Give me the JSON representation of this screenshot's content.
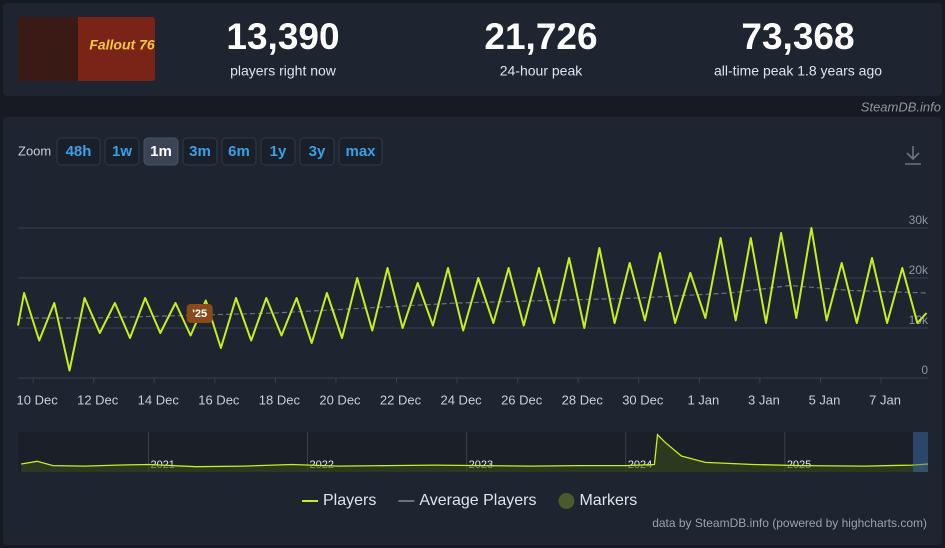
{
  "header": {
    "game_logo": "Fallout 76",
    "stats": [
      {
        "value": "13,390",
        "label": "players right now"
      },
      {
        "value": "21,726",
        "label": "24-hour peak"
      },
      {
        "value": "73,368",
        "label": "all-time peak 1.8 years ago"
      }
    ],
    "brand": "SteamDB.info"
  },
  "zoom": {
    "label": "Zoom",
    "buttons": [
      "48h",
      "1w",
      "1m",
      "3m",
      "6m",
      "1y",
      "3y",
      "max"
    ],
    "active": "1m"
  },
  "chart_data": {
    "type": "line",
    "legend": "bottom",
    "grid": true,
    "x": [
      -0.5,
      -0.3,
      0.2,
      0.7,
      1.2,
      1.7,
      2.2,
      2.7,
      3.2,
      3.7,
      4.2,
      4.7,
      5.2,
      5.7,
      6.2,
      6.7,
      7.2,
      7.7,
      8.2,
      8.7,
      9.2,
      9.7,
      10.2,
      10.7,
      11.2,
      11.7,
      12.2,
      12.7,
      13.2,
      13.7,
      14.2,
      14.7,
      15.2,
      15.7,
      16.2,
      16.7,
      17.2,
      17.7,
      18.2,
      18.7,
      19.2,
      19.7,
      20.2,
      20.7,
      21.2,
      21.7,
      22.2,
      22.7,
      23.2,
      23.7,
      24.2,
      24.7,
      25.2,
      25.7,
      26.2,
      26.7,
      27.2,
      27.7,
      28.2,
      28.7,
      29.2,
      29.5
    ],
    "series": [
      {
        "name": "Players",
        "color": "#c6f01c",
        "values": [
          10500,
          17000,
          7500,
          15000,
          1500,
          16000,
          9000,
          15000,
          8000,
          16000,
          9000,
          15000,
          8500,
          15500,
          6000,
          16000,
          7500,
          16000,
          8500,
          16000,
          7000,
          17000,
          8000,
          20000,
          9500,
          22000,
          10000,
          19000,
          10500,
          22000,
          9500,
          20000,
          11000,
          22000,
          10500,
          22000,
          11000,
          24000,
          10000,
          26000,
          11000,
          23000,
          11500,
          25000,
          11000,
          21000,
          12000,
          28000,
          11500,
          28000,
          11000,
          29000,
          12000,
          30000,
          11500,
          23000,
          11000,
          24000,
          11000,
          22000,
          11000,
          13000
        ]
      },
      {
        "name": "Average Players",
        "color": "#6b7280",
        "x": [
          -0.5,
          2,
          5,
          8,
          11,
          14,
          17,
          20,
          23,
          25,
          27,
          29.5
        ],
        "values": [
          12000,
          12000,
          12500,
          13000,
          14000,
          15000,
          15500,
          16000,
          17000,
          18500,
          17500,
          17000
        ]
      }
    ],
    "markers": {
      "name": "Markers",
      "color": "#4a5a2a",
      "labels": [
        "'25"
      ],
      "x": [
        5.5
      ]
    },
    "xlim": [
      -0.5,
      29.55
    ],
    "ylim": [
      0,
      35000
    ],
    "xticks": [
      {
        "value": 0,
        "label": "10 Dec"
      },
      {
        "value": 2,
        "label": "12 Dec"
      },
      {
        "value": 4,
        "label": "14 Dec"
      },
      {
        "value": 6,
        "label": "16 Dec"
      },
      {
        "value": 8,
        "label": "18 Dec"
      },
      {
        "value": 10,
        "label": "20 Dec"
      },
      {
        "value": 12,
        "label": "22 Dec"
      },
      {
        "value": 14,
        "label": "24 Dec"
      },
      {
        "value": 16,
        "label": "26 Dec"
      },
      {
        "value": 18,
        "label": "28 Dec"
      },
      {
        "value": 20,
        "label": "30 Dec"
      },
      {
        "value": 22,
        "label": "1 Jan"
      },
      {
        "value": 24,
        "label": "3 Jan"
      },
      {
        "value": 26,
        "label": "5 Jan"
      },
      {
        "value": 28,
        "label": "7 Jan"
      }
    ],
    "yticks": [
      0,
      {
        "value": 10000,
        "label": "10k"
      },
      {
        "value": 20000,
        "label": "20k"
      },
      {
        "value": 30000,
        "label": "30k"
      }
    ]
  },
  "navigator": {
    "x": [
      2020.2,
      2020.3,
      2020.4,
      2020.6,
      2020.8,
      2021.0,
      2021.3,
      2021.6,
      2021.9,
      2022.2,
      2022.5,
      2022.8,
      2023.1,
      2023.4,
      2023.7,
      2024.0,
      2024.18,
      2024.2,
      2024.25,
      2024.35,
      2024.5,
      2024.8,
      2025.1,
      2025.5,
      2025.8,
      2025.9
    ],
    "values": [
      15000,
      20000,
      12000,
      11000,
      13000,
      14000,
      10000,
      11000,
      14000,
      11000,
      12000,
      13000,
      12000,
      11000,
      12000,
      12000,
      14000,
      70000,
      55000,
      30000,
      18000,
      14000,
      12000,
      11000,
      13000,
      15000
    ],
    "xlim": [
      2020.18,
      2025.9
    ],
    "ylim": [
      0,
      75000
    ],
    "xticks": [
      2021,
      2022,
      2023,
      2024,
      2025
    ]
  },
  "credits": "data by SteamDB.info (powered by highcharts.com)"
}
